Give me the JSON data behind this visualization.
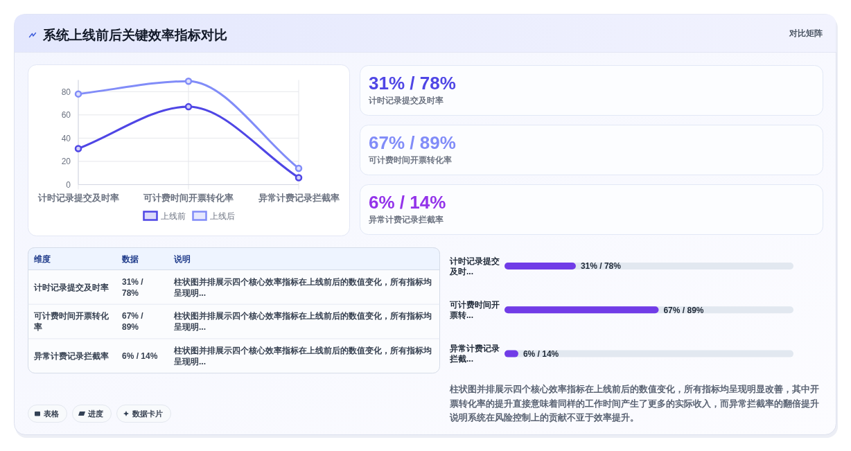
{
  "chart_data": [
    {
      "type": "other",
      "title": "系统上线前后关键效率指标对比",
      "subtitle": "对比矩阵"
    },
    {
      "type": "line",
      "categories": [
        "计时记录提交及时率",
        "可计费时间开票转化率",
        "异常计费记录拦截率"
      ],
      "series": [
        {
          "name": "上线前",
          "color": "#4f46e5",
          "values": [
            31,
            67,
            6
          ]
        },
        {
          "name": "上线后",
          "color": "#818cf8",
          "values": [
            78,
            89,
            14
          ]
        }
      ],
      "ylim": [
        0,
        90
      ],
      "yticks": [
        0,
        20,
        40,
        60,
        80
      ],
      "grid": true,
      "legend": "bottom",
      "marker": "circle"
    },
    {
      "type": "other",
      "annotations": [
        "31% / 78%",
        "计时记录提交及时率",
        "67% / 89%",
        "可计费时间开票转化率",
        "6% / 14%",
        "异常计费记录拦截率"
      ],
      "colors": [
        "#4f46e5",
        "#818cf8",
        "#9333ea"
      ]
    },
    {
      "type": "other",
      "annotations": [
        "维度",
        "数据",
        "说明",
        "计时记录提交及时率",
        "31% / 78%",
        "柱状图并排展示四个核心效率指标在上线前后的数值变化，所有指标均呈现明...",
        "可计费时间开票转化率",
        "67% / 89%",
        "柱状图并排展示四个核心效率指标在上线前后的数值变化，所有指标均呈现明...",
        "异常计费记录拦截率",
        "6% / 14%",
        "柱状图并排展示四个核心效率指标在上线前后的数值变化，所有指标均呈现明..."
      ]
    },
    {
      "type": "bar",
      "orientation": "horizontal",
      "categories": [
        "计时记录提交及时...",
        "可计费时间开票转...",
        "异常计费记录拦截..."
      ],
      "values": [
        31,
        67,
        6
      ],
      "value_labels": [
        "31% / 78%",
        "67% / 89%",
        "6% / 14%"
      ],
      "color": "#713ce7"
    },
    {
      "type": "other",
      "annotations": [
        "柱状图并排展示四个核心效率指标在上线前后的数值变化，所有指标均呈现明显改善，其中开票转化率的提升直接意味着同样的工作时间产生了更多的实际收入，而异常拦截率的翻倍提升说明系统在风险控制上的贡献不亚于效率提升。"
      ]
    },
    {
      "type": "other",
      "annotations": [
        "表格",
        "进度",
        "数据卡片"
      ]
    }
  ]
}
